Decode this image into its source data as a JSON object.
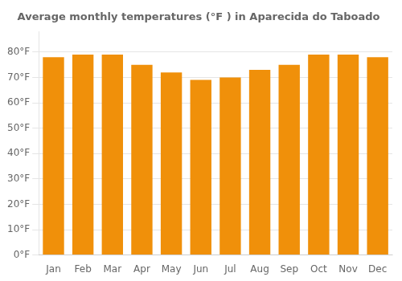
{
  "chart_data": {
    "type": "bar",
    "title": "Average monthly temperatures (°F ) in Aparecida do Taboado",
    "categories": [
      "Jan",
      "Feb",
      "Mar",
      "Apr",
      "May",
      "Jun",
      "Jul",
      "Aug",
      "Sep",
      "Oct",
      "Nov",
      "Dec"
    ],
    "values": [
      78,
      79,
      79,
      75,
      72,
      69,
      70,
      73,
      75,
      79,
      79,
      78
    ],
    "color": "#F0900A",
    "ylim": [
      0,
      88
    ],
    "yticks": [
      {
        "value": 0,
        "label": "0°F"
      },
      {
        "value": 10,
        "label": "10°F"
      },
      {
        "value": 20,
        "label": "20°F"
      },
      {
        "value": 30,
        "label": "30°F"
      },
      {
        "value": 40,
        "label": "40°F"
      },
      {
        "value": 50,
        "label": "50°F"
      },
      {
        "value": 60,
        "label": "60°F"
      },
      {
        "value": 70,
        "label": "70°F"
      },
      {
        "value": 80,
        "label": "80°F"
      }
    ],
    "grid": true
  }
}
